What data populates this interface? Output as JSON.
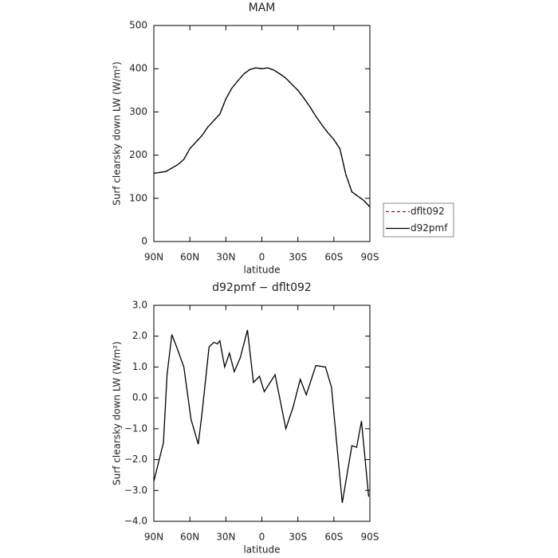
{
  "chart_data": [
    {
      "type": "line",
      "title": "MAM",
      "xlabel": "latitude",
      "ylabel": "Surf clearsky down LW (W/m²)",
      "x": [
        90,
        85,
        80,
        75,
        70,
        65,
        60,
        55,
        50,
        45,
        40,
        35,
        30,
        25,
        20,
        15,
        10,
        5,
        0,
        -5,
        -10,
        -15,
        -20,
        -25,
        -30,
        -35,
        -40,
        -45,
        -50,
        -55,
        -60,
        -65,
        -70,
        -75,
        -80,
        -85,
        -90
      ],
      "series": [
        {
          "name": "dflt092",
          "color": "#cc0000",
          "dashed": true,
          "values": [
            158,
            160,
            162,
            170,
            178,
            190,
            215,
            230,
            245,
            265,
            280,
            295,
            330,
            355,
            372,
            388,
            398,
            402,
            400,
            402,
            397,
            388,
            378,
            364,
            350,
            332,
            312,
            290,
            270,
            252,
            236,
            215,
            155,
            115,
            105,
            95,
            80
          ]
        },
        {
          "name": "d92pmf",
          "color": "#000000",
          "dashed": false,
          "values": [
            158,
            160,
            162,
            170,
            178,
            190,
            215,
            230,
            245,
            265,
            280,
            295,
            330,
            355,
            372,
            388,
            398,
            402,
            400,
            402,
            397,
            388,
            378,
            364,
            350,
            332,
            312,
            290,
            270,
            252,
            236,
            215,
            155,
            115,
            105,
            95,
            80
          ]
        }
      ],
      "xlim": [
        90,
        -90
      ],
      "xticks": [
        {
          "value": 90,
          "label": "90N"
        },
        {
          "value": 60,
          "label": "60N"
        },
        {
          "value": 30,
          "label": "30N"
        },
        0,
        {
          "value": -30,
          "label": "30S"
        },
        {
          "value": -60,
          "label": "60S"
        },
        {
          "value": -90,
          "label": "90S"
        }
      ],
      "ylim": [
        0,
        500
      ],
      "yticks": [
        0,
        100,
        200,
        300,
        400,
        500
      ],
      "legend": "right"
    },
    {
      "type": "line",
      "title": "d92pmf − dflt092",
      "xlabel": "latitude",
      "ylabel": "Surf clearsky down LW (W/m²)",
      "x": [
        90,
        82,
        79,
        75,
        71,
        65,
        59,
        53,
        50,
        44,
        40,
        37,
        35,
        31,
        27,
        23,
        18,
        12,
        7,
        2,
        -2,
        -11,
        -20,
        -26,
        -32,
        -37,
        -45,
        -53,
        -58,
        -67,
        -75,
        -79,
        -83,
        -89
      ],
      "series": [
        {
          "name": "d92pmf − dflt092",
          "color": "#000000",
          "dashed": false,
          "values": [
            -2.7,
            -1.45,
            0.75,
            2.05,
            1.65,
            1.0,
            -0.7,
            -1.5,
            -0.55,
            1.65,
            1.8,
            1.75,
            1.85,
            1.0,
            1.45,
            0.85,
            1.3,
            2.2,
            0.5,
            0.7,
            0.2,
            0.75,
            -1.0,
            -0.3,
            0.6,
            0.1,
            1.05,
            1.0,
            0.35,
            -3.4,
            -1.55,
            -1.6,
            -0.75,
            -3.2
          ]
        }
      ],
      "xlim": [
        90,
        -90
      ],
      "xticks": [
        {
          "value": 90,
          "label": "90N"
        },
        {
          "value": 60,
          "label": "60N"
        },
        {
          "value": 30,
          "label": "30N"
        },
        0,
        {
          "value": -30,
          "label": "30S"
        },
        {
          "value": -60,
          "label": "60S"
        },
        {
          "value": -90,
          "label": "90S"
        }
      ],
      "ylim": [
        -4,
        3
      ],
      "yticks": [
        {
          "value": -4,
          "label": "−4.0"
        },
        {
          "value": -3,
          "label": "−3.0"
        },
        {
          "value": -2,
          "label": "−2.0"
        },
        {
          "value": -1,
          "label": "−1.0"
        },
        {
          "value": 0,
          "label": "0.0"
        },
        {
          "value": 1,
          "label": "1.0"
        },
        {
          "value": 2,
          "label": "2.0"
        },
        {
          "value": 3,
          "label": "3.0"
        }
      ]
    }
  ]
}
